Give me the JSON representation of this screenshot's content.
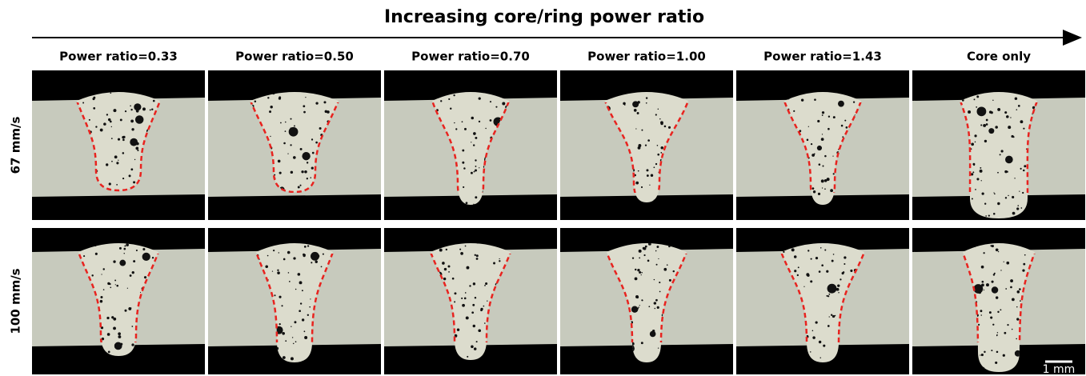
{
  "title": "Increasing core/ring power ratio",
  "columns": [
    "Power ratio=0.33",
    "Power ratio=0.50",
    "Power ratio=0.70",
    "Power ratio=1.00",
    "Power ratio=1.43",
    "Core only"
  ],
  "rows": [
    "67 mm/s",
    "100 mm/s"
  ],
  "scale_bar": "1 mm"
}
